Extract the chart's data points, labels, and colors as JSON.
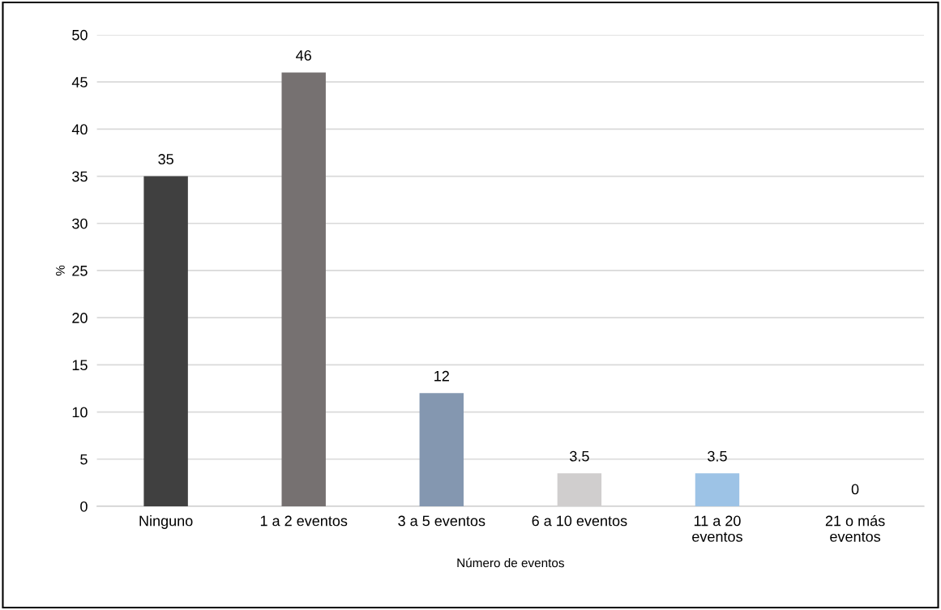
{
  "chart_data": {
    "type": "bar",
    "xlabel": "Número de eventos",
    "ylabel": "%",
    "categories": [
      "Ninguno",
      "1 a 2 eventos",
      "3 a 5 eventos",
      "6 a 10 eventos",
      "11 a 20\neventos",
      "21 o más\neventos"
    ],
    "values": [
      35,
      46,
      12,
      3.5,
      3.5,
      0
    ],
    "colors": [
      "#404040",
      "#767171",
      "#8497b0",
      "#d0cece",
      "#9dc3e6",
      "#a9d18e"
    ],
    "ylim": [
      0,
      50
    ],
    "yticks": [
      0,
      5,
      10,
      15,
      20,
      25,
      30,
      35,
      40,
      45,
      50
    ],
    "grid": "y",
    "data_labels": true
  }
}
